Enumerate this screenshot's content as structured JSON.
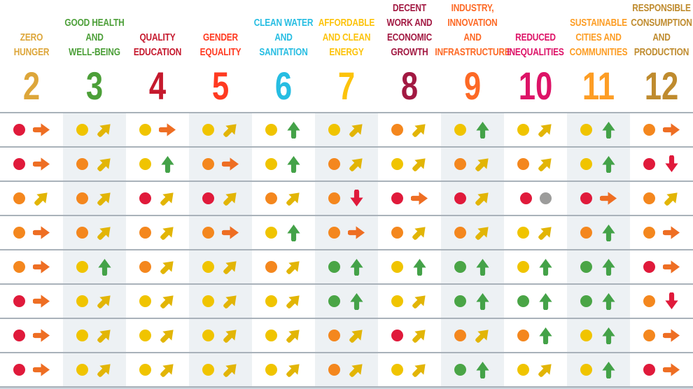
{
  "chart_data": {
    "type": "table",
    "description": "SDG dashboard grid: goal columns 2-12, each row shows a rating dot and a trend arrow per goal",
    "legend_position": "none",
    "columns": [
      {
        "goal_number": "2",
        "label_lines": [
          "ZERO",
          "HUNGER"
        ],
        "color": "#DDA63A"
      },
      {
        "goal_number": "3",
        "label_lines": [
          "GOOD HEALTH",
          "AND",
          "WELL-BEING"
        ],
        "color": "#4C9F38"
      },
      {
        "goal_number": "4",
        "label_lines": [
          "QUALITY",
          "EDUCATION"
        ],
        "color": "#C5192D"
      },
      {
        "goal_number": "5",
        "label_lines": [
          "GENDER",
          "EQUALITY"
        ],
        "color": "#FF3A21"
      },
      {
        "goal_number": "6",
        "label_lines": [
          "CLEAN WATER",
          "AND",
          "SANITATION"
        ],
        "color": "#26BDE2"
      },
      {
        "goal_number": "7",
        "label_lines": [
          "AFFORDABLE",
          "AND CLEAN",
          "ENERGY"
        ],
        "color": "#FCC30B"
      },
      {
        "goal_number": "8",
        "label_lines": [
          "DECENT",
          "WORK AND",
          "ECONOMIC",
          "GROWTH"
        ],
        "color": "#A21942"
      },
      {
        "goal_number": "9",
        "label_lines": [
          "INDUSTRY,",
          "INNOVATION",
          "AND",
          "INFRASTRUCTURE"
        ],
        "color": "#FD6925"
      },
      {
        "goal_number": "10",
        "label_lines": [
          "REDUCED",
          "INEQUALITIES"
        ],
        "color": "#DD1367"
      },
      {
        "goal_number": "11",
        "label_lines": [
          "SUSTAINABLE",
          "CITIES AND",
          "COMMUNITIES"
        ],
        "color": "#FD9D24"
      },
      {
        "goal_number": "12",
        "label_lines": [
          "RESPONSIBLE",
          "CONSUMPTION",
          "AND",
          "PRODUCTION"
        ],
        "color": "#BF8B2E"
      }
    ],
    "dot_colors": {
      "red": "#E01A3B",
      "orange": "#F4871E",
      "yellow": "#F0C400",
      "green": "#4AA546",
      "gray": "#9C9C9B"
    },
    "trend_colors": {
      "up": "#44A248",
      "up-right": "#E2B506",
      "right": "#EE6E23",
      "down": "#E01A3B",
      "none": "#9C9C9B"
    },
    "rows": [
      [
        [
          "red",
          "right"
        ],
        [
          "yellow",
          "up-right"
        ],
        [
          "yellow",
          "right"
        ],
        [
          "yellow",
          "up-right"
        ],
        [
          "yellow",
          "up"
        ],
        [
          "yellow",
          "up-right"
        ],
        [
          "orange",
          "up-right"
        ],
        [
          "yellow",
          "up"
        ],
        [
          "yellow",
          "up-right"
        ],
        [
          "yellow",
          "up"
        ],
        [
          "orange",
          "right"
        ]
      ],
      [
        [
          "red",
          "right"
        ],
        [
          "orange",
          "up-right"
        ],
        [
          "yellow",
          "up"
        ],
        [
          "orange",
          "right"
        ],
        [
          "yellow",
          "up"
        ],
        [
          "orange",
          "up-right"
        ],
        [
          "yellow",
          "up-right"
        ],
        [
          "orange",
          "up-right"
        ],
        [
          "orange",
          "up-right"
        ],
        [
          "yellow",
          "up"
        ],
        [
          "red",
          "down"
        ]
      ],
      [
        [
          "orange",
          "up-right"
        ],
        [
          "orange",
          "up-right"
        ],
        [
          "red",
          "up-right"
        ],
        [
          "red",
          "up-right"
        ],
        [
          "orange",
          "up-right"
        ],
        [
          "orange",
          "down"
        ],
        [
          "red",
          "right"
        ],
        [
          "red",
          "up-right"
        ],
        [
          "red",
          "none"
        ],
        [
          "red",
          "right"
        ],
        [
          "orange",
          "up-right"
        ]
      ],
      [
        [
          "orange",
          "right"
        ],
        [
          "orange",
          "up-right"
        ],
        [
          "orange",
          "up-right"
        ],
        [
          "orange",
          "right"
        ],
        [
          "yellow",
          "up"
        ],
        [
          "orange",
          "right"
        ],
        [
          "orange",
          "up-right"
        ],
        [
          "orange",
          "up-right"
        ],
        [
          "yellow",
          "up-right"
        ],
        [
          "orange",
          "up"
        ],
        [
          "orange",
          "right"
        ]
      ],
      [
        [
          "orange",
          "right"
        ],
        [
          "yellow",
          "up"
        ],
        [
          "orange",
          "up-right"
        ],
        [
          "yellow",
          "up-right"
        ],
        [
          "orange",
          "up-right"
        ],
        [
          "green",
          "up"
        ],
        [
          "yellow",
          "up"
        ],
        [
          "green",
          "up"
        ],
        [
          "yellow",
          "up"
        ],
        [
          "green",
          "up"
        ],
        [
          "red",
          "right"
        ]
      ],
      [
        [
          "red",
          "right"
        ],
        [
          "yellow",
          "up-right"
        ],
        [
          "yellow",
          "up-right"
        ],
        [
          "yellow",
          "up-right"
        ],
        [
          "yellow",
          "up-right"
        ],
        [
          "green",
          "up"
        ],
        [
          "yellow",
          "up-right"
        ],
        [
          "green",
          "up"
        ],
        [
          "green",
          "up"
        ],
        [
          "green",
          "up"
        ],
        [
          "orange",
          "down"
        ]
      ],
      [
        [
          "red",
          "right"
        ],
        [
          "yellow",
          "up-right"
        ],
        [
          "yellow",
          "up-right"
        ],
        [
          "yellow",
          "up-right"
        ],
        [
          "yellow",
          "up-right"
        ],
        [
          "orange",
          "up-right"
        ],
        [
          "red",
          "up-right"
        ],
        [
          "orange",
          "up-right"
        ],
        [
          "orange",
          "up"
        ],
        [
          "yellow",
          "up"
        ],
        [
          "orange",
          "right"
        ]
      ],
      [
        [
          "red",
          "right"
        ],
        [
          "yellow",
          "up-right"
        ],
        [
          "yellow",
          "up-right"
        ],
        [
          "yellow",
          "up-right"
        ],
        [
          "yellow",
          "up-right"
        ],
        [
          "orange",
          "up-right"
        ],
        [
          "yellow",
          "up-right"
        ],
        [
          "green",
          "up"
        ],
        [
          "yellow",
          "up-right"
        ],
        [
          "yellow",
          "up"
        ],
        [
          "red",
          "right"
        ]
      ]
    ]
  }
}
